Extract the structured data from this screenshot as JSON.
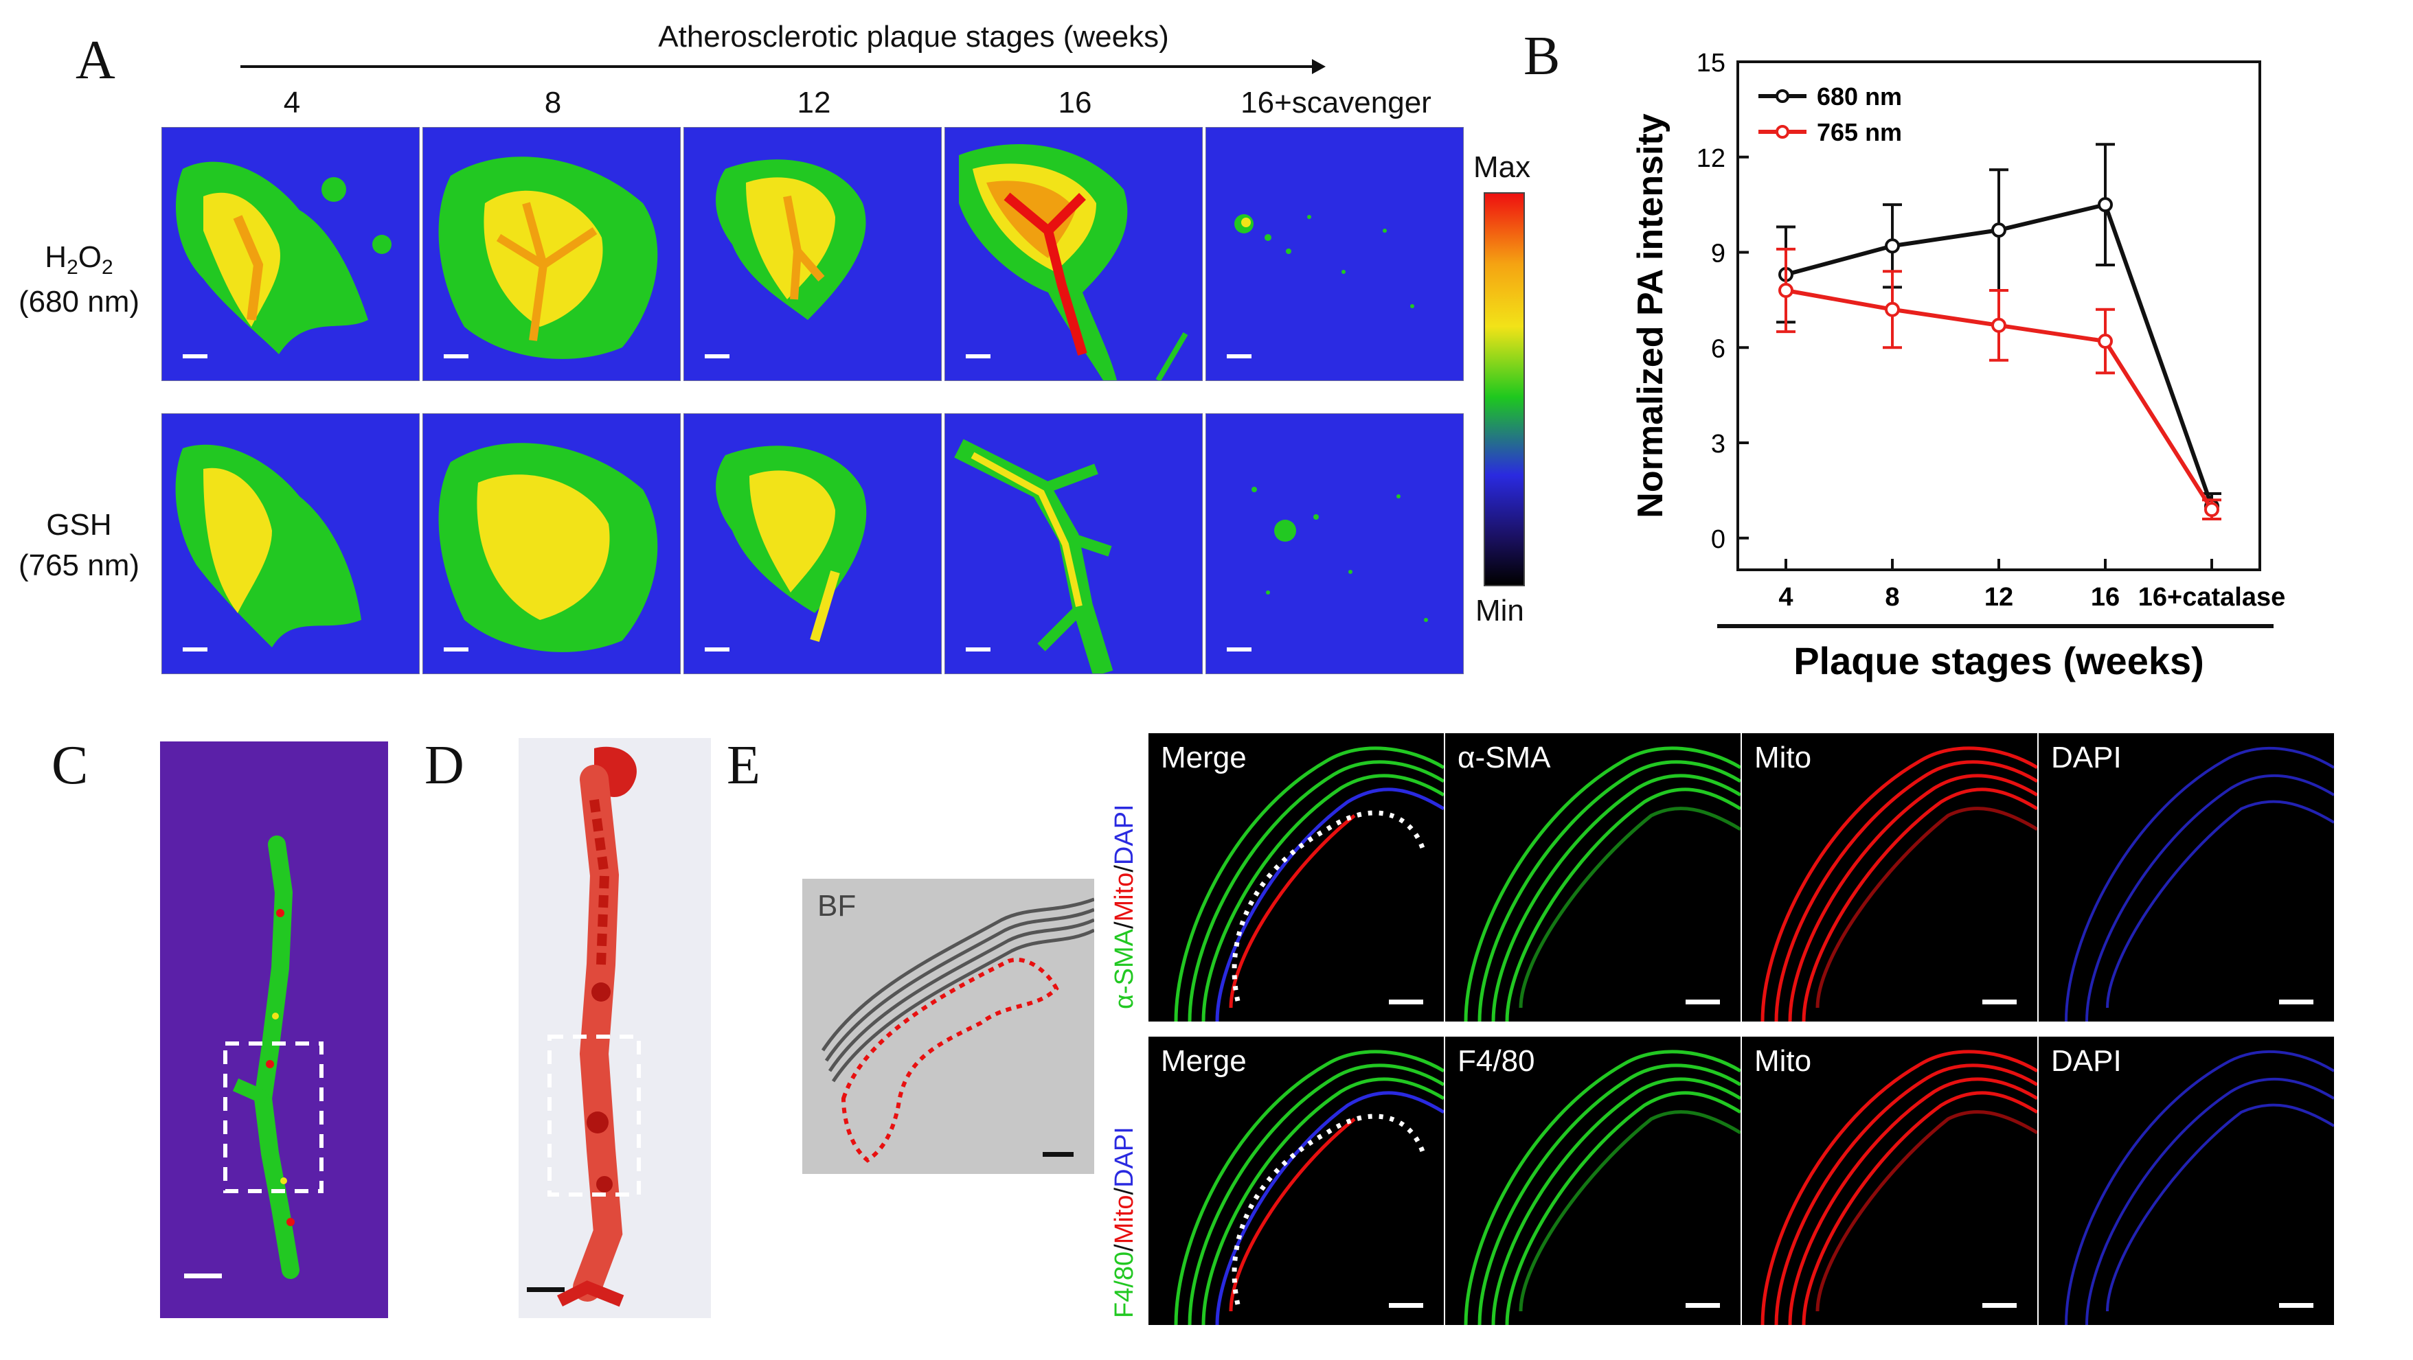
{
  "panel_letters": {
    "a": "A",
    "b": "B",
    "c": "C",
    "d": "D",
    "e": "E"
  },
  "panel_a": {
    "header": "Atherosclerotic plaque stages (weeks)",
    "columns": [
      "4",
      "8",
      "12",
      "16",
      "16+scavenger"
    ],
    "rows": [
      {
        "label_main": "H",
        "label_sub": "2",
        "label_mid": "O",
        "label_sub2": "2",
        "label_line2": "(680 nm)"
      },
      {
        "label_main": "GSH",
        "label_sub": "",
        "label_mid": "",
        "label_sub2": "",
        "label_line2": "(765 nm)"
      }
    ],
    "colorbar": {
      "max_label": "Max",
      "min_label": "Min"
    }
  },
  "chart_data": {
    "type": "line",
    "ylabel": "Normalized PA intensity",
    "xlabel": "Plaque stages (weeks)",
    "categories": [
      "4",
      "8",
      "12",
      "16",
      "16+catalase"
    ],
    "ylim": [
      -1,
      15
    ],
    "yticks": [
      0,
      3,
      6,
      9,
      12,
      15
    ],
    "legend_position": "top-left",
    "series": [
      {
        "name": "680 nm",
        "color": "#111111",
        "values": [
          8.3,
          9.2,
          9.7,
          10.5,
          1.0
        ],
        "errors": [
          1.5,
          1.3,
          1.9,
          1.9,
          0.4
        ]
      },
      {
        "name": "765 nm",
        "color": "#e8201c",
        "values": [
          7.8,
          7.2,
          6.7,
          6.2,
          0.9
        ],
        "errors": [
          1.3,
          1.2,
          1.1,
          1.0,
          0.3
        ]
      }
    ]
  },
  "panel_e": {
    "bf_label": "BF",
    "row1_side_label": [
      "α-SMA",
      "/",
      "Mito",
      "/",
      "DAPI"
    ],
    "row2_side_label": [
      "F4/80",
      "/",
      "Mito",
      "/",
      "DAPI"
    ],
    "row1": [
      "Merge",
      "α-SMA",
      "Mito",
      "DAPI"
    ],
    "row2": [
      "Merge",
      "F4/80",
      "Mito",
      "DAPI"
    ]
  },
  "colors": {
    "tile_bg": "#2a2ae0",
    "green": "#22c822",
    "yellow": "#f2e318",
    "orange": "#f0a010",
    "red": "#e81010",
    "accent_red": "#e8201c"
  }
}
